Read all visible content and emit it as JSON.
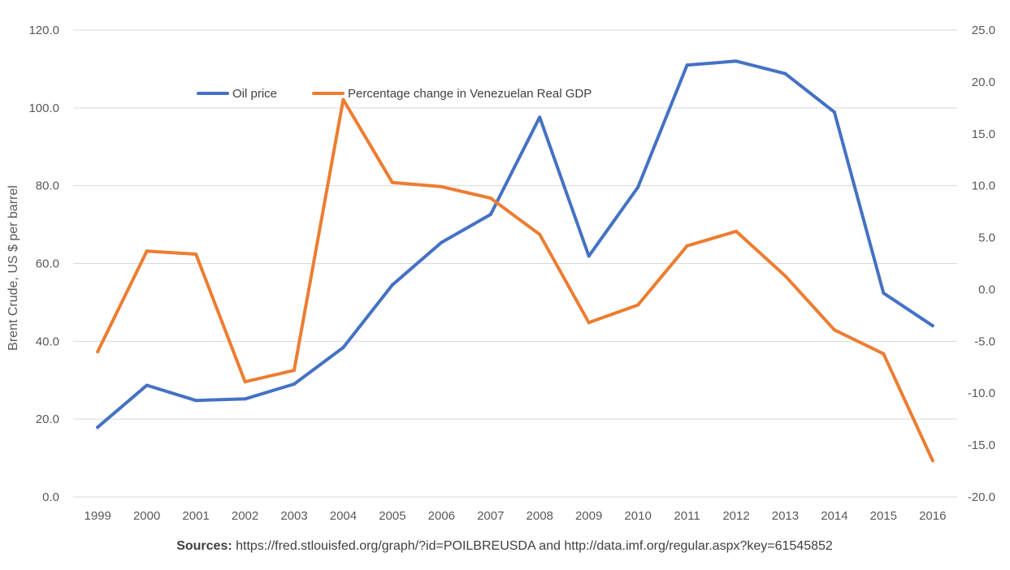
{
  "chart_data": {
    "type": "line",
    "title": "",
    "xlabel": "",
    "ylabel": "Brent Crude, US $ per barrel",
    "y2label": "",
    "x": [
      "1999",
      "2000",
      "2001",
      "2002",
      "2003",
      "2004",
      "2005",
      "2006",
      "2007",
      "2008",
      "2009",
      "2010",
      "2011",
      "2012",
      "2013",
      "2014",
      "2015",
      "2016"
    ],
    "ylim": [
      0,
      120
    ],
    "y_ticks": [
      "0.0",
      "20.0",
      "40.0",
      "60.0",
      "80.0",
      "100.0",
      "120.0"
    ],
    "y2lim": [
      -20,
      25
    ],
    "y2_ticks": [
      "-20.0",
      "-15.0",
      "-10.0",
      "-5.0",
      "0.0",
      "5.0",
      "10.0",
      "15.0",
      "20.0",
      "25.0"
    ],
    "grid": "horizontal",
    "legend_position": "top-left",
    "series": [
      {
        "name": "Oil price",
        "axis": "left",
        "color": "#4472C4",
        "values": [
          17.9,
          28.7,
          24.8,
          25.2,
          29.0,
          38.4,
          54.5,
          65.4,
          72.6,
          97.6,
          61.9,
          79.6,
          111.0,
          112.0,
          108.8,
          98.9,
          52.4,
          44.0
        ]
      },
      {
        "name": "Percentage change in Venezuelan Real GDP",
        "axis": "right",
        "color": "#ED7D31",
        "values": [
          -6.0,
          3.7,
          3.4,
          -8.9,
          -7.8,
          18.3,
          10.3,
          9.9,
          8.8,
          5.3,
          -3.2,
          -1.5,
          4.2,
          5.6,
          1.3,
          -3.9,
          -6.2,
          -16.5
        ]
      }
    ]
  },
  "source": {
    "label": "Sources:",
    "text": " https://fred.stlouisfed.org/graph/?id=POILBREUSDA and http://data.imf.org/regular.aspx?key=61545852"
  }
}
